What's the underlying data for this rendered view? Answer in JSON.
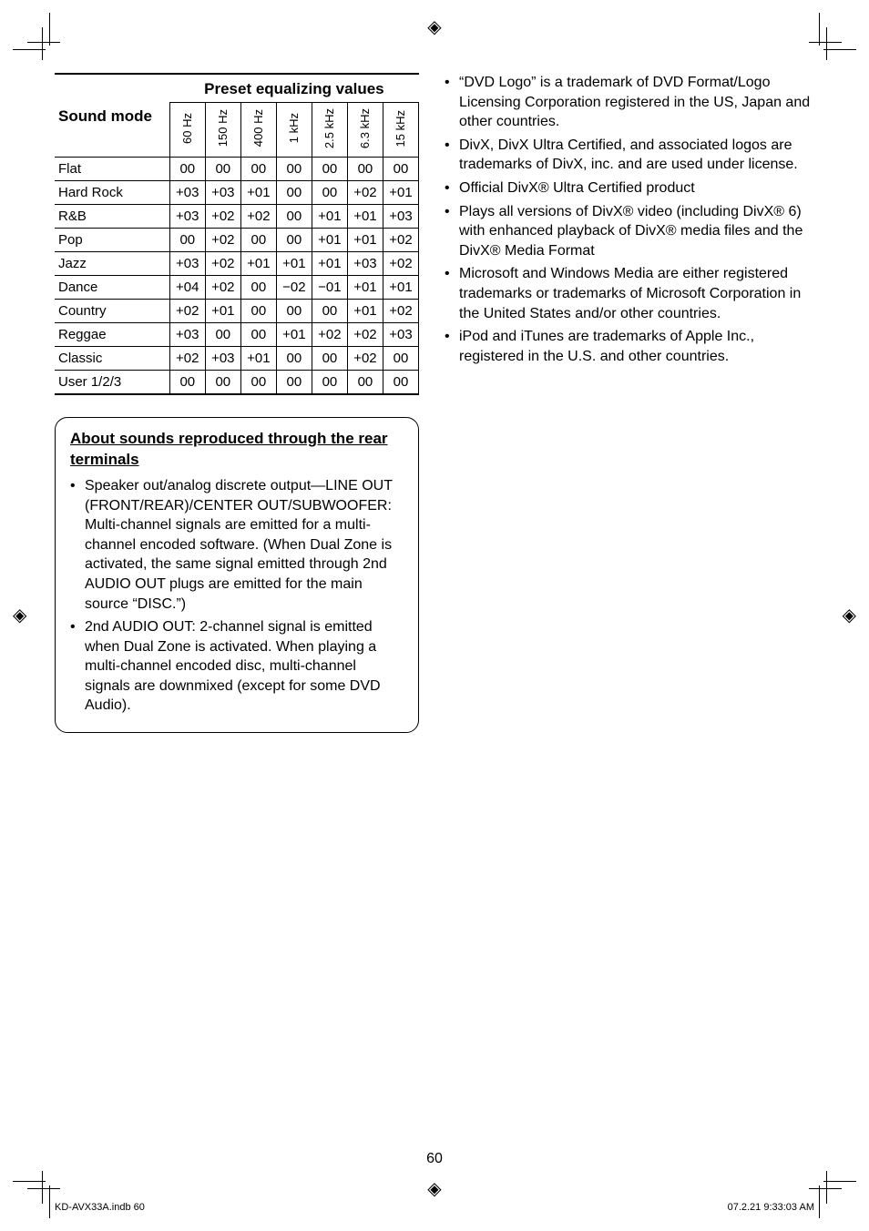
{
  "registration_mark_glyph": "◈",
  "crop_line_color": "#000000",
  "eq_table": {
    "row_header": "Sound mode",
    "super_header": "Preset equalizing values",
    "freq_headers": [
      "60 Hz",
      "150 Hz",
      "400 Hz",
      "1 kHz",
      "2.5 kHz",
      "6.3 kHz",
      "15 kHz"
    ],
    "rows": [
      {
        "label": "Flat",
        "cells": [
          "00",
          "00",
          "00",
          "00",
          "00",
          "00",
          "00"
        ]
      },
      {
        "label": "Hard Rock",
        "cells": [
          "+03",
          "+03",
          "+01",
          "00",
          "00",
          "+02",
          "+01"
        ]
      },
      {
        "label": "R&B",
        "cells": [
          "+03",
          "+02",
          "+02",
          "00",
          "+01",
          "+01",
          "+03"
        ]
      },
      {
        "label": "Pop",
        "cells": [
          "00",
          "+02",
          "00",
          "00",
          "+01",
          "+01",
          "+02"
        ]
      },
      {
        "label": "Jazz",
        "cells": [
          "+03",
          "+02",
          "+01",
          "+01",
          "+01",
          "+03",
          "+02"
        ]
      },
      {
        "label": "Dance",
        "cells": [
          "+04",
          "+02",
          "00",
          "−02",
          "−01",
          "+01",
          "+01"
        ]
      },
      {
        "label": "Country",
        "cells": [
          "+02",
          "+01",
          "00",
          "00",
          "00",
          "+01",
          "+02"
        ]
      },
      {
        "label": "Reggae",
        "cells": [
          "+03",
          "00",
          "00",
          "+01",
          "+02",
          "+02",
          "+03"
        ]
      },
      {
        "label": "Classic",
        "cells": [
          "+02",
          "+03",
          "+01",
          "00",
          "00",
          "+02",
          "00"
        ]
      },
      {
        "label": "User 1/2/3",
        "cells": [
          "00",
          "00",
          "00",
          "00",
          "00",
          "00",
          "00"
        ]
      }
    ]
  },
  "about_box": {
    "heading": "About sounds reproduced through the rear terminals",
    "items": [
      "Speaker out/analog discrete output—LINE OUT (FRONT/REAR)/CENTER OUT/SUBWOOFER: Multi-channel signals are emitted for a multi-channel encoded software. (When Dual Zone is activated, the same signal emitted through 2nd AUDIO OUT plugs are emitted for the main source “DISC.”)",
      "2nd AUDIO OUT: 2-channel signal is emitted when Dual Zone is activated. When playing a multi-channel encoded disc, multi-channel signals are downmixed (except for some DVD Audio)."
    ]
  },
  "right_bullets": [
    "“DVD Logo” is a trademark of DVD Format/Logo Licensing Corporation registered in the US, Japan and other countries.",
    "DivX, DivX Ultra Certified, and associated logos are trademarks of DivX, inc. and are used under license.",
    "Official DivX® Ultra Certified product",
    "Plays all versions of DivX® video (including DivX® 6) with enhanced playback of DivX® media files and the DivX® Media Format",
    "Microsoft and Windows Media are either registered trademarks or trademarks of Microsoft Corporation in the United States and/or other countries.",
    "iPod and iTunes are trademarks of Apple Inc., registered in the U.S. and other countries."
  ],
  "page_number": "60",
  "footer_left": "KD-AVX33A.indb   60",
  "footer_right": "07.2.21   9:33:03 AM"
}
